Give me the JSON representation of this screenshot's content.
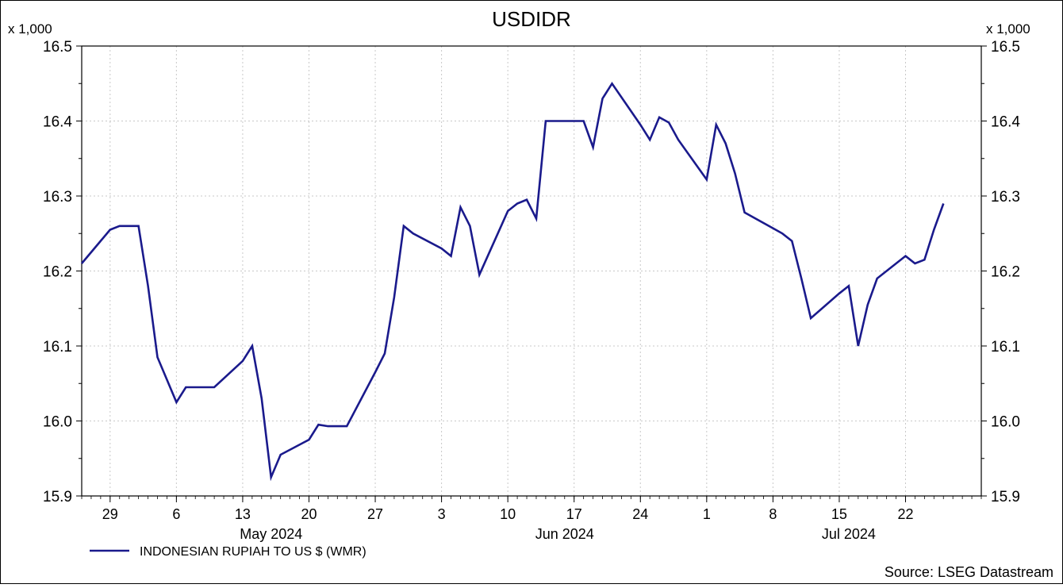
{
  "chart_data": {
    "type": "line",
    "title": "USDIDR",
    "scale_label_left": "x 1,000",
    "scale_label_right": "x 1,000",
    "yticks": [
      "15.9",
      "16.0",
      "16.1",
      "16.2",
      "16.3",
      "16.4",
      "16.5"
    ],
    "ylim": [
      15.9,
      16.5
    ],
    "xlim": [
      "2024-04-26",
      "2024-07-30"
    ],
    "xticks": [
      {
        "date": "2024-04-29",
        "label": "29"
      },
      {
        "date": "2024-05-06",
        "label": "6"
      },
      {
        "date": "2024-05-13",
        "label": "13"
      },
      {
        "date": "2024-05-20",
        "label": "20"
      },
      {
        "date": "2024-05-27",
        "label": "27"
      },
      {
        "date": "2024-06-03",
        "label": "3"
      },
      {
        "date": "2024-06-10",
        "label": "10"
      },
      {
        "date": "2024-06-17",
        "label": "17"
      },
      {
        "date": "2024-06-24",
        "label": "24"
      },
      {
        "date": "2024-07-01",
        "label": "1"
      },
      {
        "date": "2024-07-08",
        "label": "8"
      },
      {
        "date": "2024-07-15",
        "label": "15"
      },
      {
        "date": "2024-07-22",
        "label": "22"
      }
    ],
    "month_labels": [
      {
        "date": "2024-05-16",
        "label": "May 2024"
      },
      {
        "date": "2024-06-16",
        "label": "Jun 2024"
      },
      {
        "date": "2024-07-16",
        "label": "Jul 2024"
      }
    ],
    "grid": true,
    "legend_position": "bottom-left",
    "source": "Source: LSEG Datastream",
    "series": [
      {
        "name": "INDONESIAN RUPIAH TO US $ (WMR)",
        "color": "#1a1a8c",
        "points": [
          [
            "2024-04-26",
            16.21
          ],
          [
            "2024-04-29",
            16.255
          ],
          [
            "2024-04-30",
            16.26
          ],
          [
            "2024-05-01",
            16.26
          ],
          [
            "2024-05-02",
            16.26
          ],
          [
            "2024-05-03",
            16.18
          ],
          [
            "2024-05-04",
            16.085
          ],
          [
            "2024-05-06",
            16.025
          ],
          [
            "2024-05-07",
            16.045
          ],
          [
            "2024-05-08",
            16.045
          ],
          [
            "2024-05-09",
            16.045
          ],
          [
            "2024-05-10",
            16.045
          ],
          [
            "2024-05-13",
            16.08
          ],
          [
            "2024-05-14",
            16.1
          ],
          [
            "2024-05-15",
            16.03
          ],
          [
            "2024-05-16",
            15.925
          ],
          [
            "2024-05-17",
            15.955
          ],
          [
            "2024-05-20",
            15.975
          ],
          [
            "2024-05-21",
            15.995
          ],
          [
            "2024-05-22",
            15.993
          ],
          [
            "2024-05-23",
            15.993
          ],
          [
            "2024-05-24",
            15.993
          ],
          [
            "2024-05-27",
            16.065
          ],
          [
            "2024-05-28",
            16.09
          ],
          [
            "2024-05-29",
            16.165
          ],
          [
            "2024-05-30",
            16.26
          ],
          [
            "2024-05-31",
            16.25
          ],
          [
            "2024-06-03",
            16.23
          ],
          [
            "2024-06-04",
            16.22
          ],
          [
            "2024-06-05",
            16.285
          ],
          [
            "2024-06-06",
            16.26
          ],
          [
            "2024-06-07",
            16.195
          ],
          [
            "2024-06-10",
            16.28
          ],
          [
            "2024-06-11",
            16.29
          ],
          [
            "2024-06-12",
            16.295
          ],
          [
            "2024-06-13",
            16.27
          ],
          [
            "2024-06-14",
            16.4
          ],
          [
            "2024-06-17",
            16.4
          ],
          [
            "2024-06-18",
            16.4
          ],
          [
            "2024-06-19",
            16.365
          ],
          [
            "2024-06-20",
            16.43
          ],
          [
            "2024-06-21",
            16.45
          ],
          [
            "2024-06-24",
            16.395
          ],
          [
            "2024-06-25",
            16.375
          ],
          [
            "2024-06-26",
            16.405
          ],
          [
            "2024-06-27",
            16.398
          ],
          [
            "2024-06-28",
            16.375
          ],
          [
            "2024-07-01",
            16.322
          ],
          [
            "2024-07-02",
            16.395
          ],
          [
            "2024-07-03",
            16.37
          ],
          [
            "2024-07-04",
            16.33
          ],
          [
            "2024-07-05",
            16.278
          ],
          [
            "2024-07-08",
            16.257
          ],
          [
            "2024-07-09",
            16.25
          ],
          [
            "2024-07-10",
            16.24
          ],
          [
            "2024-07-11",
            16.19
          ],
          [
            "2024-07-12",
            16.137
          ],
          [
            "2024-07-15",
            16.17
          ],
          [
            "2024-07-16",
            16.18
          ],
          [
            "2024-07-17",
            16.1
          ],
          [
            "2024-07-18",
            16.155
          ],
          [
            "2024-07-19",
            16.19
          ],
          [
            "2024-07-22",
            16.22
          ],
          [
            "2024-07-23",
            16.21
          ],
          [
            "2024-07-24",
            16.215
          ],
          [
            "2024-07-25",
            16.255
          ],
          [
            "2024-07-26",
            16.29
          ]
        ]
      }
    ]
  }
}
